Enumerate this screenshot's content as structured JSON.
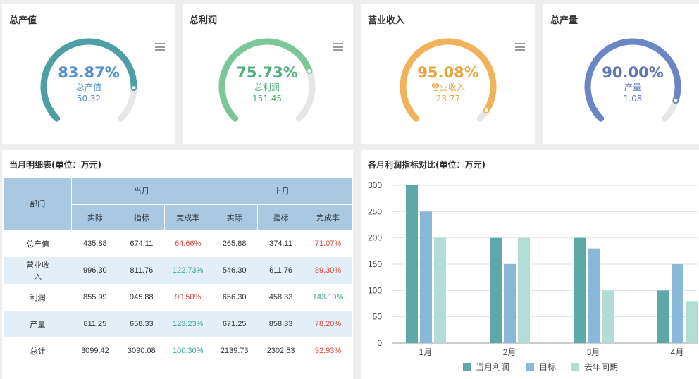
{
  "kpis": [
    {
      "title": "总产值",
      "percent": "83.87%",
      "label": "总产值",
      "value": "50.32",
      "ratio": 0.8387,
      "color": "#4e9fa3",
      "text_color": "#4e8fd0"
    },
    {
      "title": "总利润",
      "percent": "75.73%",
      "label": "总利润",
      "value": "151.45",
      "ratio": 0.7573,
      "color": "#7cc79a",
      "text_color": "#4eb07a"
    },
    {
      "title": "营业收入",
      "percent": "95.08%",
      "label": "营业收入",
      "value": "23.77",
      "ratio": 0.9508,
      "color": "#f0b25a",
      "text_color": "#e8a33c"
    },
    {
      "title": "总产量",
      "percent": "90.00%",
      "label": "产量",
      "value": "1.08",
      "ratio": 0.9,
      "color": "#6b86c4",
      "text_color": "#5b76bb"
    }
  ],
  "table": {
    "title": "当月明细表(单位：万元)",
    "dept_header": "部门",
    "group_current": "当月",
    "group_previous": "上月",
    "sub_headers": [
      "实际",
      "指标",
      "完成率",
      "实际",
      "指标",
      "完成率"
    ],
    "rows": [
      {
        "dept": "总产值",
        "cells": [
          "435.88",
          "674.11",
          "64.66%",
          "265.88",
          "374.11",
          "71.07%"
        ],
        "rate_status": [
          "red",
          "red"
        ]
      },
      {
        "dept": "营业收入",
        "cells": [
          "996.30",
          "811.76",
          "122.73%",
          "546.30",
          "611.76",
          "89.30%"
        ],
        "rate_status": [
          "green",
          "red"
        ]
      },
      {
        "dept": "利润",
        "cells": [
          "855.99",
          "945.88",
          "90.50%",
          "656.30",
          "458.33",
          "143.19%"
        ],
        "rate_status": [
          "red",
          "green"
        ]
      },
      {
        "dept": "产量",
        "cells": [
          "811.25",
          "658.33",
          "123.23%",
          "671.25",
          "858.33",
          "78.20%"
        ],
        "rate_status": [
          "green",
          "red"
        ]
      },
      {
        "dept": "总计",
        "cells": [
          "3099.42",
          "3090.08",
          "100.30%",
          "2139.73",
          "2302.53",
          "92.93%"
        ],
        "rate_status": [
          "green",
          "red"
        ]
      }
    ]
  },
  "chart_panel_title": "各月利润指标对比(单位：万元)",
  "chart_data": {
    "type": "bar",
    "categories": [
      "1月",
      "2月",
      "3月",
      "4月"
    ],
    "series": [
      {
        "name": "当月利润",
        "values": [
          300,
          200,
          200,
          100
        ],
        "color": "#5fa8a8"
      },
      {
        "name": "目标",
        "values": [
          250,
          150,
          180,
          150
        ],
        "color": "#8ab8d8"
      },
      {
        "name": "去年同期",
        "values": [
          200,
          200,
          100,
          80
        ],
        "color": "#b2dcd6"
      }
    ],
    "ylim": [
      0,
      300
    ],
    "yticks": [
      0,
      50,
      100,
      150,
      200,
      250,
      300
    ],
    "grid": true,
    "legend": "bottom"
  }
}
